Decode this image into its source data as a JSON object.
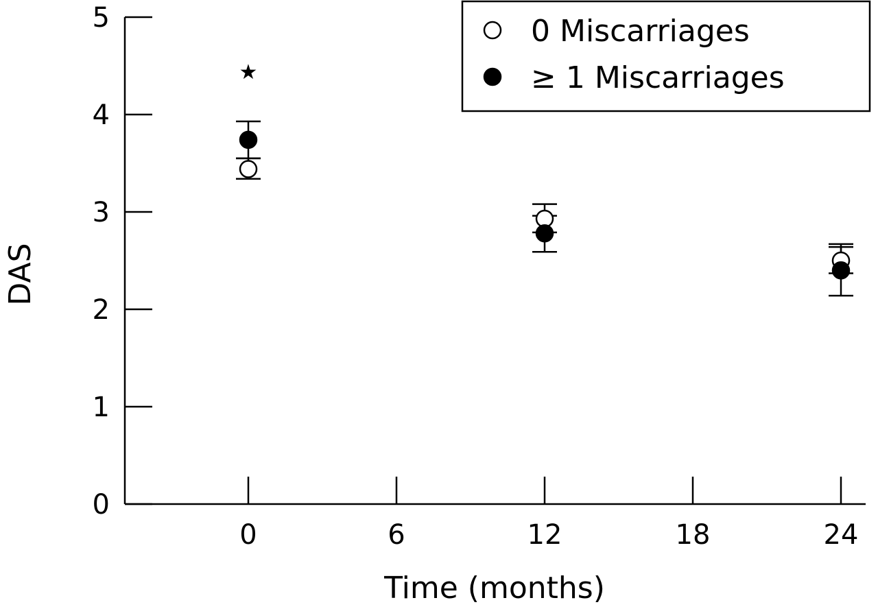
{
  "chart_data": {
    "type": "scatter",
    "xlabel": "Time (months)",
    "ylabel": "DAS",
    "xlim": [
      -5,
      25
    ],
    "ylim": [
      0,
      5
    ],
    "x_ticks": [
      0,
      6,
      12,
      18,
      24
    ],
    "y_ticks": [
      0,
      1,
      2,
      3,
      4,
      5
    ],
    "grid": false,
    "legend_position": "top-right",
    "series": [
      {
        "name": "0 Miscarriages",
        "marker": "open-circle",
        "color": "#000000",
        "points": [
          {
            "x": 0,
            "y": 3.44,
            "err_low": 3.34,
            "err_high": 3.55
          },
          {
            "x": 12,
            "y": 2.93,
            "err_low": 2.79,
            "err_high": 3.08
          },
          {
            "x": 24,
            "y": 2.5,
            "err_low": 2.37,
            "err_high": 2.64
          }
        ]
      },
      {
        "name": "≥ 1 Miscarriages",
        "marker": "filled-circle",
        "color": "#000000",
        "points": [
          {
            "x": 0,
            "y": 3.74,
            "err_low": 3.55,
            "err_high": 3.93
          },
          {
            "x": 12,
            "y": 2.78,
            "err_low": 2.59,
            "err_high": 2.96
          },
          {
            "x": 24,
            "y": 2.4,
            "err_low": 2.14,
            "err_high": 2.67
          }
        ]
      }
    ],
    "annotations": [
      {
        "text": "★",
        "x": 0,
        "y": 4.45
      }
    ]
  }
}
